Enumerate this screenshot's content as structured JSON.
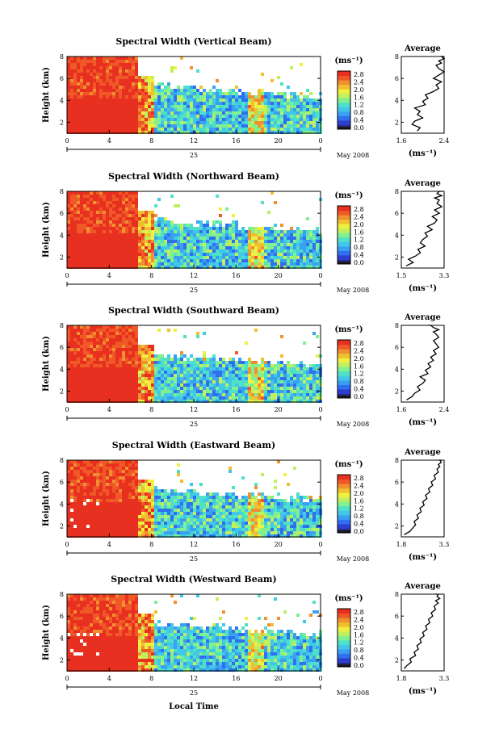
{
  "xlabel": "Local Time",
  "common": {
    "ylabel": "Height (km)",
    "y_ticks": [
      "2",
      "4",
      "6",
      "8"
    ],
    "x_ticks": [
      "0",
      "4",
      "8",
      "12",
      "16",
      "20",
      "0"
    ],
    "date_day": "25",
    "date_label": "May 2008",
    "cb_unit": "(ms⁻¹)",
    "avg_title": "Average",
    "avg_unit": "(ms⁻¹)",
    "colors": [
      "#1a1a1a",
      "#2a2a8c",
      "#2d3fd0",
      "#2f6ff0",
      "#3aa0f0",
      "#41c8e8",
      "#4fe0c8",
      "#80f090",
      "#c0f060",
      "#f0f040",
      "#f0c030",
      "#f09030",
      "#f05828",
      "#e83020"
    ]
  },
  "chart_data": [
    {
      "type": "heatmap",
      "title": "Spectral Width (Vertical Beam)",
      "ylim": [
        1,
        8
      ],
      "xlim": [
        0,
        24
      ],
      "colorbar": {
        "unit": "(ms⁻¹)",
        "ticks": [
          "2.8",
          "2.4",
          "2.0",
          "1.6",
          "1.2",
          "0.8",
          "0.4",
          "0.0"
        ],
        "range": [
          0,
          2.8
        ]
      },
      "average": {
        "xlim": [
          1.6,
          2.4
        ],
        "xticks": [
          "1.6",
          "2.4"
        ],
        "x": [
          1.9,
          1.95,
          1.8,
          1.85,
          2.0,
          1.9,
          1.95,
          1.85,
          2.05,
          2.0,
          2.1,
          2.05,
          2.2,
          2.3,
          2.25,
          2.35,
          2.2,
          2.3,
          2.4,
          2.3,
          2.25,
          2.35,
          2.3,
          2.4,
          2.35,
          2.4
        ],
        "y": [
          1.2,
          1.5,
          1.8,
          2.1,
          2.4,
          2.7,
          3.0,
          3.3,
          3.6,
          3.9,
          4.2,
          4.5,
          4.8,
          5.1,
          5.4,
          5.7,
          6.0,
          6.3,
          6.6,
          6.9,
          7.2,
          7.4,
          7.6,
          7.8,
          8.0,
          8.2
        ]
      }
    },
    {
      "type": "heatmap",
      "title": "Spectral Width (Northward Beam)",
      "ylim": [
        1,
        8
      ],
      "xlim": [
        0,
        24
      ],
      "colorbar": {
        "unit": "(ms⁻¹)",
        "ticks": [
          "2.8",
          "2.4",
          "2.0",
          "1.6",
          "1.2",
          "0.8",
          "0.4",
          "0.0"
        ],
        "range": [
          0,
          2.8
        ]
      },
      "average": {
        "xlim": [
          1.5,
          3.3
        ],
        "xticks": [
          "1.5",
          "3.3"
        ],
        "x": [
          1.7,
          2.0,
          1.8,
          2.1,
          2.3,
          2.2,
          2.5,
          2.3,
          2.4,
          2.6,
          2.5,
          2.8,
          2.6,
          2.9,
          3.0,
          2.8,
          3.1,
          2.9,
          3.2,
          3.0,
          3.1,
          2.9,
          3.2,
          3.0,
          3.1,
          3.2
        ],
        "y": [
          1.2,
          1.5,
          1.8,
          2.1,
          2.4,
          2.7,
          3.0,
          3.3,
          3.6,
          3.9,
          4.2,
          4.5,
          4.8,
          5.1,
          5.4,
          5.7,
          6.0,
          6.3,
          6.6,
          6.9,
          7.2,
          7.4,
          7.6,
          7.8,
          8.0,
          8.2
        ]
      }
    },
    {
      "type": "heatmap",
      "title": "Spectral Width (Southward Beam)",
      "ylim": [
        1,
        8
      ],
      "xlim": [
        0,
        24
      ],
      "colorbar": {
        "unit": "(ms⁻¹)",
        "ticks": [
          "2.8",
          "2.4",
          "2.0",
          "1.6",
          "1.2",
          "0.8",
          "0.4",
          "0.0"
        ],
        "range": [
          0,
          2.8
        ]
      },
      "average": {
        "xlim": [
          1.6,
          2.4
        ],
        "xticks": [
          "1.6",
          "2.4"
        ],
        "x": [
          1.7,
          1.8,
          1.85,
          1.95,
          1.9,
          2.0,
          2.05,
          1.95,
          2.1,
          2.05,
          2.15,
          2.1,
          2.2,
          2.15,
          2.25,
          2.2,
          2.3,
          2.25,
          2.2,
          2.3,
          2.25,
          2.2,
          2.3,
          2.2,
          2.15,
          2.1
        ],
        "y": [
          1.2,
          1.5,
          1.8,
          2.1,
          2.4,
          2.7,
          3.0,
          3.3,
          3.6,
          3.9,
          4.2,
          4.5,
          4.8,
          5.1,
          5.4,
          5.7,
          6.0,
          6.3,
          6.6,
          6.9,
          7.2,
          7.4,
          7.6,
          7.8,
          8.0,
          8.2
        ]
      }
    },
    {
      "type": "heatmap",
      "title": "Spectral Width (Eastward Beam)",
      "ylim": [
        1,
        8
      ],
      "xlim": [
        0,
        24
      ],
      "colorbar": {
        "unit": "(ms⁻¹)",
        "ticks": [
          "2.8",
          "2.4",
          "2.0",
          "1.6",
          "1.2",
          "0.8",
          "0.4",
          "0.0"
        ],
        "range": [
          0,
          2.8
        ]
      },
      "average": {
        "xlim": [
          1.8,
          3.3
        ],
        "xticks": [
          "1.8",
          "3.3"
        ],
        "x": [
          1.9,
          2.1,
          2.2,
          2.3,
          2.25,
          2.4,
          2.35,
          2.5,
          2.45,
          2.6,
          2.55,
          2.7,
          2.65,
          2.8,
          2.75,
          2.9,
          2.85,
          3.0,
          2.95,
          3.1,
          3.05,
          3.15,
          3.1,
          3.2,
          3.15,
          3.2
        ],
        "y": [
          1.2,
          1.5,
          1.8,
          2.1,
          2.4,
          2.7,
          3.0,
          3.3,
          3.6,
          3.9,
          4.2,
          4.5,
          4.8,
          5.1,
          5.4,
          5.7,
          6.0,
          6.3,
          6.6,
          6.9,
          7.2,
          7.4,
          7.6,
          7.8,
          8.0,
          8.2
        ]
      }
    },
    {
      "type": "heatmap",
      "title": "Spectral Width (Westward Beam)",
      "ylim": [
        1,
        8
      ],
      "xlim": [
        0,
        24
      ],
      "colorbar": {
        "unit": "(ms⁻¹)",
        "ticks": [
          "2.8",
          "2.4",
          "2.0",
          "1.6",
          "1.2",
          "0.8",
          "0.4",
          "0.0"
        ],
        "range": [
          0,
          2.8
        ]
      },
      "average": {
        "xlim": [
          1.8,
          3.3
        ],
        "xticks": [
          "1.8",
          "3.3"
        ],
        "x": [
          1.9,
          2.0,
          2.15,
          2.1,
          2.3,
          2.25,
          2.4,
          2.35,
          2.5,
          2.45,
          2.6,
          2.55,
          2.7,
          2.65,
          2.8,
          2.75,
          2.9,
          2.85,
          3.0,
          2.95,
          3.1,
          3.0,
          3.15,
          3.05,
          3.1,
          3.0
        ],
        "y": [
          1.2,
          1.5,
          1.8,
          2.1,
          2.4,
          2.7,
          3.0,
          3.3,
          3.6,
          3.9,
          4.2,
          4.5,
          4.8,
          5.1,
          5.4,
          5.7,
          6.0,
          6.3,
          6.6,
          6.9,
          7.2,
          7.4,
          7.6,
          7.8,
          8.0,
          8.2
        ]
      }
    }
  ]
}
